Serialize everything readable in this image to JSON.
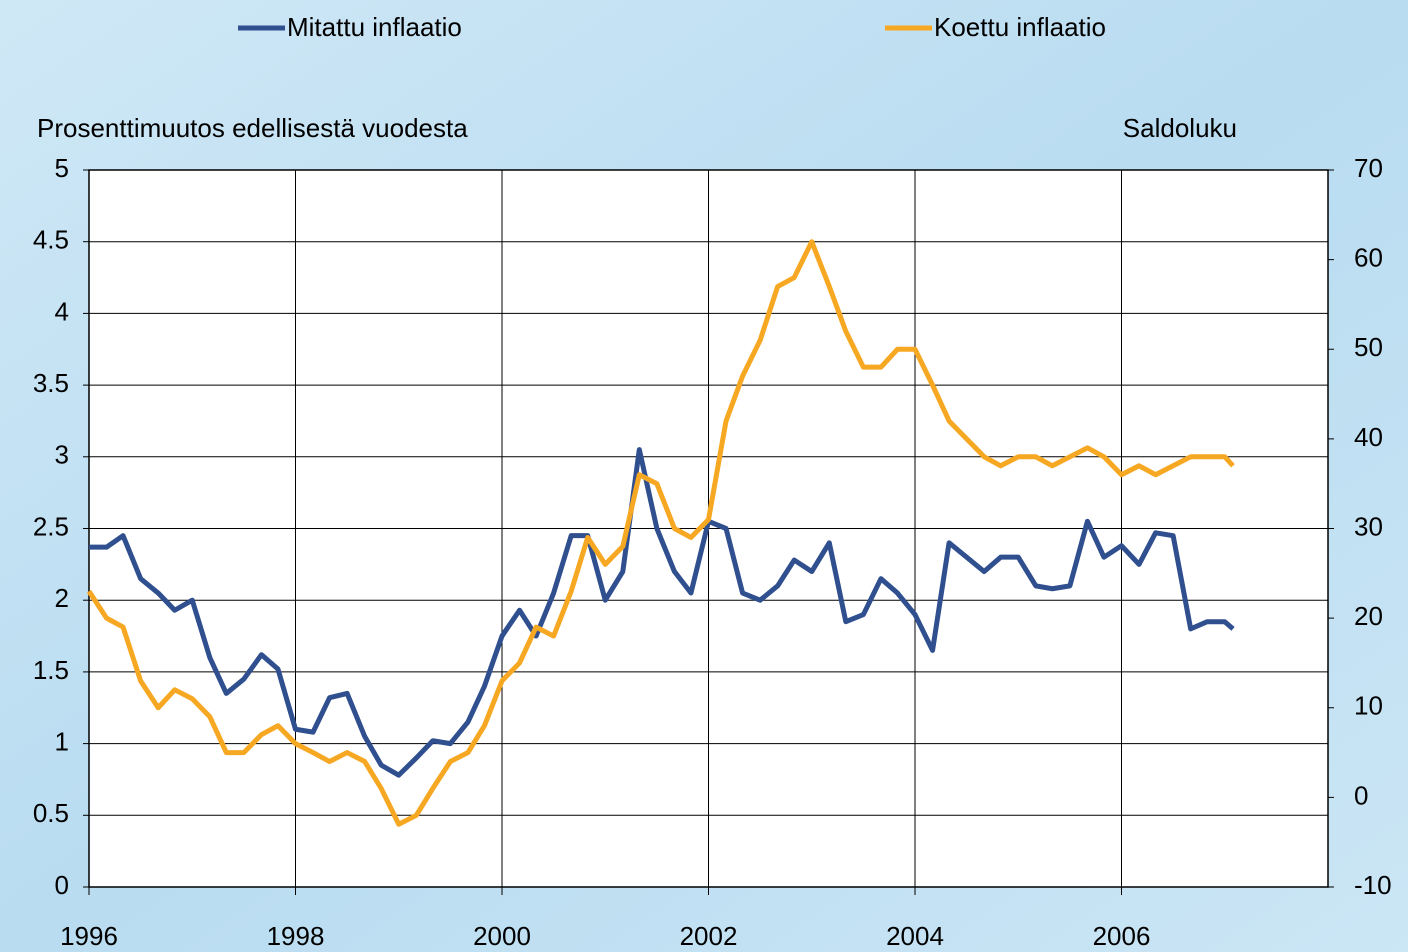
{
  "chart_data": {
    "type": "line",
    "axis_label": "Prosenttimuutos edellisestä vuodesta",
    "y2_axis_label": "Saldoluku",
    "x": [
      1996,
      1996.17,
      1996.33,
      1996.5,
      1996.67,
      1996.83,
      1997,
      1997.17,
      1997.33,
      1997.5,
      1997.67,
      1997.83,
      1998,
      1998.17,
      1998.33,
      1998.5,
      1998.67,
      1998.83,
      1999,
      1999.17,
      1999.33,
      1999.5,
      1999.67,
      1999.83,
      2000,
      2000.17,
      2000.33,
      2000.5,
      2000.67,
      2000.83,
      2001,
      2001.17,
      2001.33,
      2001.5,
      2001.67,
      2001.83,
      2002,
      2002.17,
      2002.33,
      2002.5,
      2002.67,
      2002.83,
      2003,
      2003.17,
      2003.33,
      2003.5,
      2003.67,
      2003.83,
      2004,
      2004.17,
      2004.33,
      2004.5,
      2004.67,
      2004.83,
      2005,
      2005.17,
      2005.33,
      2005.5,
      2005.67,
      2005.83,
      2006,
      2006.17,
      2006.33,
      2006.5,
      2006.67,
      2006.83,
      2007,
      2007.08
    ],
    "series": [
      {
        "name": "Mitattu inflaatio",
        "color": "#2f4f8f",
        "values": [
          2.37,
          2.37,
          2.45,
          2.15,
          2.05,
          1.93,
          2.0,
          1.6,
          1.35,
          1.45,
          1.62,
          1.52,
          1.1,
          1.08,
          1.32,
          1.35,
          1.05,
          0.85,
          0.78,
          0.9,
          1.02,
          1.0,
          1.15,
          1.4,
          1.75,
          1.93,
          1.75,
          2.05,
          2.45,
          2.45,
          2.0,
          2.2,
          3.05,
          2.5,
          2.2,
          2.05,
          2.55,
          2.5,
          2.05,
          2.0,
          2.1,
          2.28,
          2.2,
          2.4,
          1.85,
          1.9,
          2.15,
          2.05,
          1.9,
          1.65,
          2.4,
          2.3,
          2.2,
          2.3,
          2.3,
          2.1,
          2.08,
          2.1,
          2.55,
          2.3,
          2.38,
          2.25,
          2.47,
          2.45,
          1.8,
          1.85,
          1.85,
          1.8
        ]
      },
      {
        "name": "Koettu inflaatio",
        "color": "#f7a823",
        "axis": "y2",
        "values": [
          23,
          20,
          19,
          13,
          10,
          12,
          11,
          9,
          5,
          5,
          7,
          8,
          6,
          5,
          4,
          5,
          4,
          1,
          -3,
          -2,
          1,
          4,
          5,
          8,
          13,
          15,
          19,
          18,
          23,
          29,
          26,
          28,
          36,
          35,
          30,
          29,
          31,
          42,
          47,
          51,
          57,
          58,
          62,
          57,
          52,
          48,
          48,
          50,
          50,
          46,
          42,
          40,
          38,
          37,
          38,
          38,
          37,
          38,
          39,
          38,
          36,
          37,
          36,
          37,
          38,
          38,
          38,
          37
        ]
      }
    ],
    "xlim": [
      1996,
      2008
    ],
    "xticks": [
      1996,
      1998,
      2000,
      2002,
      2004,
      2006
    ],
    "ylim": [
      0,
      5
    ],
    "yticks": [
      0,
      0.5,
      1,
      1.5,
      2,
      2.5,
      3,
      3.5,
      4,
      4.5,
      5
    ],
    "y2lim": [
      -10,
      70
    ],
    "y2ticks": [
      -10,
      0,
      10,
      20,
      30,
      40,
      50,
      60,
      70
    ],
    "grid": true
  }
}
